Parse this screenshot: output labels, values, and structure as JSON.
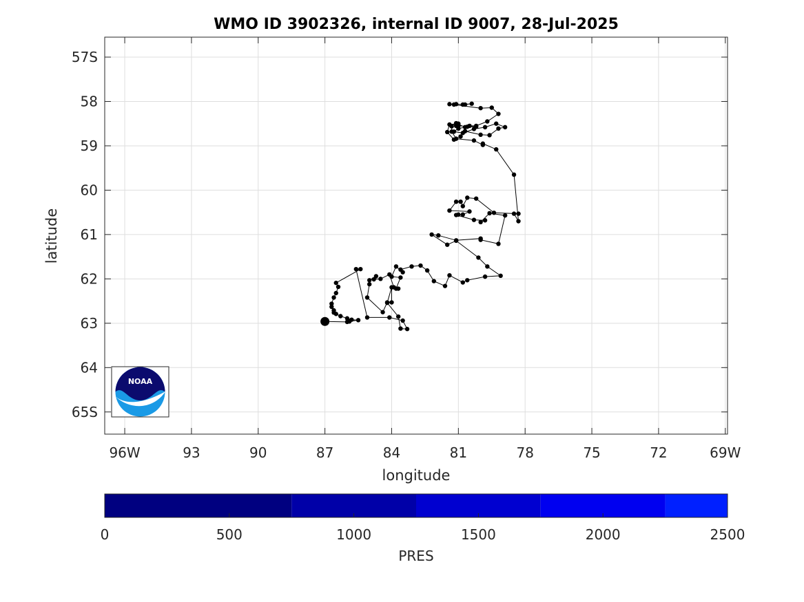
{
  "chart_data": {
    "type": "scatter",
    "title": "WMO ID 3902326, internal ID 9007, 28-Jul-2025",
    "xlabel": "longitude",
    "ylabel": "latitude",
    "xlim": [
      -96.9,
      -68.9
    ],
    "ylim": [
      -65.5,
      -56.55
    ],
    "x_ticks": [
      -96,
      -93,
      -90,
      -87,
      -84,
      -81,
      -78,
      -75,
      -72,
      -69
    ],
    "x_tick_labels": [
      "96W",
      "93",
      "90",
      "87",
      "84",
      "81",
      "78",
      "75",
      "72",
      "69W"
    ],
    "y_ticks": [
      -57,
      -58,
      -59,
      -60,
      -61,
      -62,
      -63,
      -64,
      -65
    ],
    "y_tick_labels": [
      "57S",
      "58",
      "59",
      "60",
      "61",
      "62",
      "63",
      "64",
      "65S"
    ],
    "grid": true,
    "series": [
      {
        "x": [
          -80.8,
          -80.4,
          -80.7,
          -81.1,
          -81.2,
          -81.4,
          -80.0,
          -79.5,
          -79.2,
          -79.7,
          -80.2,
          -80.5,
          -80.6,
          -80.2,
          -81.0,
          -81.1,
          -81.0,
          -81.4,
          -81.5,
          -81.2,
          -80.9,
          -80.7,
          -80.0,
          -79.6,
          -79.2,
          -78.9,
          -79.3,
          -79.8,
          -80.3,
          -80.8,
          -81.2,
          -81.0,
          -80.7,
          -81.1,
          -81.3,
          -81.3,
          -81.1,
          -80.3,
          -79.9,
          -79.9,
          -79.3,
          -78.5,
          -78.3,
          -78.5,
          -78.3,
          -79.4,
          -80.2,
          -80.6,
          -80.8,
          -80.9,
          -81.1,
          -81.4,
          -80.5,
          -80.8,
          -81.0,
          -81.1,
          -80.3,
          -79.8,
          -80.0,
          -79.6,
          -78.9,
          -79.2,
          -80.0,
          -80.0,
          -81.1,
          -81.9,
          -82.2,
          -81.5,
          -81.1,
          -80.1,
          -79.7,
          -79.1,
          -79.8,
          -80.6,
          -80.8,
          -81.4,
          -81.6,
          -82.1,
          -82.4,
          -82.7,
          -83.1,
          -83.6,
          -83.5,
          -83.8,
          -84.0,
          -83.6,
          -83.8,
          -83.7,
          -83.9,
          -84.1,
          -84.5,
          -84.8,
          -84.7,
          -85.0,
          -85.0,
          -85.1,
          -84.4,
          -84.2,
          -84.0,
          -84.0,
          -84.2,
          -83.7,
          -83.6,
          -83.3,
          -83.5,
          -84.1,
          -85.1,
          -85.6,
          -85.4,
          -86.5,
          -86.4,
          -86.5,
          -86.6,
          -86.7,
          -86.7,
          -86.6,
          -86.6,
          -86.5,
          -86.3,
          -86.0,
          -85.8,
          -85.5,
          -85.9,
          -86.0,
          -87.0
        ],
        "y": [
          -58.07,
          -58.05,
          -58.07,
          -58.06,
          -58.07,
          -58.06,
          -58.15,
          -58.14,
          -58.28,
          -58.45,
          -58.55,
          -58.55,
          -58.57,
          -58.57,
          -58.55,
          -58.55,
          -58.5,
          -58.52,
          -58.69,
          -58.86,
          -58.79,
          -58.67,
          -58.75,
          -58.76,
          -58.61,
          -58.58,
          -58.5,
          -58.58,
          -58.62,
          -58.71,
          -58.68,
          -58.61,
          -58.58,
          -58.49,
          -58.56,
          -58.68,
          -58.84,
          -58.88,
          -58.98,
          -58.95,
          -59.08,
          -59.65,
          -60.7,
          -60.53,
          -60.53,
          -60.51,
          -60.19,
          -60.17,
          -60.36,
          -60.26,
          -60.26,
          -60.46,
          -60.48,
          -60.55,
          -60.55,
          -60.56,
          -60.67,
          -60.68,
          -60.72,
          -60.52,
          -60.57,
          -61.21,
          -61.12,
          -61.09,
          -61.13,
          -61.02,
          -61.0,
          -61.23,
          -61.14,
          -61.52,
          -61.72,
          -61.93,
          -61.95,
          -62.03,
          -62.08,
          -61.92,
          -62.16,
          -62.05,
          -61.81,
          -61.7,
          -61.72,
          -61.79,
          -61.85,
          -61.72,
          -61.95,
          -61.97,
          -62.22,
          -62.22,
          -62.19,
          -61.9,
          -62.0,
          -62.01,
          -61.94,
          -62.03,
          -62.12,
          -62.42,
          -62.75,
          -62.53,
          -62.53,
          -62.19,
          -62.54,
          -62.85,
          -63.12,
          -63.13,
          -62.94,
          -62.87,
          -62.87,
          -61.78,
          -61.78,
          -62.09,
          -62.18,
          -62.32,
          -62.42,
          -62.56,
          -62.63,
          -62.71,
          -62.76,
          -62.79,
          -62.84,
          -62.89,
          -62.92,
          -62.93,
          -62.96,
          -62.97,
          -62.96
        ]
      }
    ],
    "last_point_marker": "large-black-dot",
    "colorbar": {
      "label": "PRES",
      "ticks": [
        "0",
        "500",
        "1000",
        "1500",
        "2000",
        "2500"
      ],
      "bands": [
        "#000080",
        "#0000A8",
        "#0000D0",
        "#0000F0",
        "#0020FF",
        "#0040FF"
      ]
    },
    "logo": "noaa-logo"
  }
}
